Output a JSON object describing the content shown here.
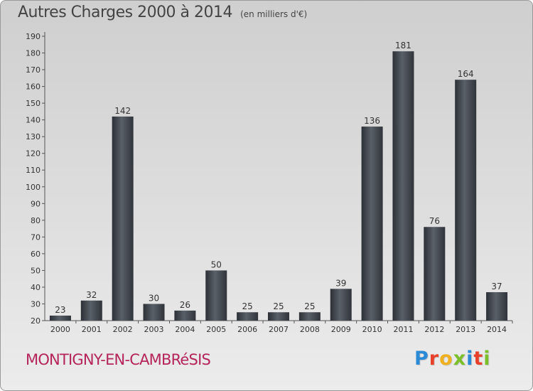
{
  "header": {
    "title": "Autres Charges 2000 à 2014",
    "unit": "(en milliers d'€)"
  },
  "footer": {
    "commune": "MONTIGNY-EN-CAMBRéSIS",
    "logo_letters": [
      "P",
      "r",
      "o",
      "x",
      "i",
      "t",
      "i"
    ],
    "logo_colors": [
      "#2a8ad6",
      "#e8402a",
      "#f0b020",
      "#7bbf2a",
      "#2a8ad6",
      "#e8402a",
      "#7bbf2a"
    ]
  },
  "chart_data": {
    "type": "bar",
    "title": "Autres Charges 2000 à 2014",
    "subtitle": "(en milliers d'€)",
    "categories": [
      "2000",
      "2001",
      "2002",
      "2003",
      "2004",
      "2005",
      "2006",
      "2007",
      "2008",
      "2009",
      "2010",
      "2011",
      "2012",
      "2013",
      "2014"
    ],
    "values": [
      23,
      32,
      142,
      30,
      26,
      50,
      25,
      25,
      25,
      39,
      136,
      181,
      76,
      164,
      37
    ],
    "ylim": [
      20,
      190
    ],
    "yticks": [
      20,
      30,
      40,
      50,
      60,
      70,
      80,
      90,
      100,
      110,
      120,
      130,
      140,
      150,
      160,
      170,
      180,
      190
    ],
    "grid": false,
    "bar_color": "#3f444b"
  }
}
